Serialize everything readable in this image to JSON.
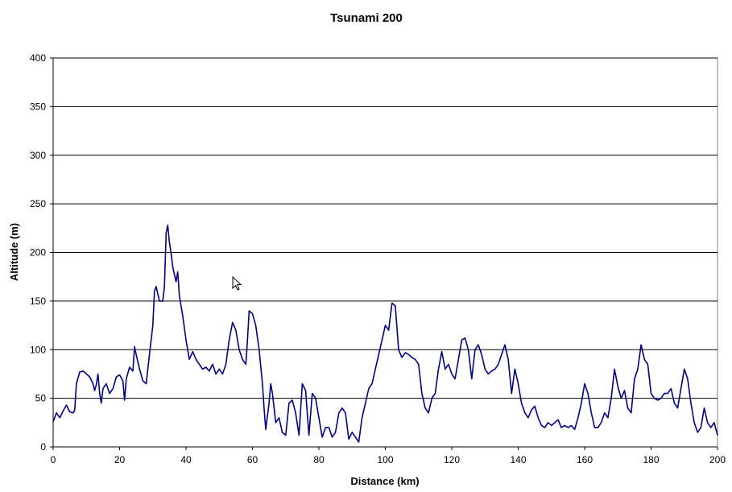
{
  "chart_data": {
    "type": "line",
    "title": "Tsunami 200",
    "xlabel": "Distance (km)",
    "ylabel": "Altitude (m)",
    "xlim": [
      0,
      200
    ],
    "ylim": [
      0,
      400
    ],
    "x_ticks": [
      "0",
      "20",
      "40",
      "60",
      "80",
      "100",
      "120",
      "140",
      "160",
      "180",
      "200"
    ],
    "y_ticks": [
      "0",
      "50",
      "100",
      "150",
      "200",
      "250",
      "300",
      "350",
      "400"
    ],
    "grid": "horizontal",
    "legend": "none",
    "colors": {
      "series": "#000080",
      "grid": "#000000",
      "frame": "#808080"
    },
    "series": [
      {
        "values": [
          [
            0,
            26
          ],
          [
            1,
            35
          ],
          [
            2,
            30
          ],
          [
            3,
            37
          ],
          [
            4,
            43
          ],
          [
            5,
            36
          ],
          [
            6,
            35
          ],
          [
            6.5,
            38
          ],
          [
            7,
            65
          ],
          [
            8,
            77
          ],
          [
            9,
            78
          ],
          [
            10,
            75
          ],
          [
            11,
            72
          ],
          [
            12,
            65
          ],
          [
            12.5,
            58
          ],
          [
            13,
            64
          ],
          [
            13.5,
            75
          ],
          [
            14,
            55
          ],
          [
            14.5,
            45
          ],
          [
            15,
            60
          ],
          [
            16,
            65
          ],
          [
            17,
            55
          ],
          [
            18,
            60
          ],
          [
            19,
            72
          ],
          [
            20,
            74
          ],
          [
            21,
            68
          ],
          [
            21.5,
            48
          ],
          [
            22,
            70
          ],
          [
            23,
            82
          ],
          [
            24,
            78
          ],
          [
            24.5,
            103
          ],
          [
            25,
            95
          ],
          [
            26,
            80
          ],
          [
            27,
            68
          ],
          [
            28,
            65
          ],
          [
            29,
            95
          ],
          [
            30,
            125
          ],
          [
            30.5,
            160
          ],
          [
            31,
            165
          ],
          [
            32,
            150
          ],
          [
            33,
            150
          ],
          [
            33.5,
            165
          ],
          [
            34,
            220
          ],
          [
            34.5,
            228
          ],
          [
            35,
            210
          ],
          [
            35.5,
            200
          ],
          [
            36,
            185
          ],
          [
            37,
            170
          ],
          [
            37.5,
            180
          ],
          [
            38,
            155
          ],
          [
            39,
            135
          ],
          [
            40,
            110
          ],
          [
            41,
            90
          ],
          [
            42,
            98
          ],
          [
            43,
            90
          ],
          [
            44,
            85
          ],
          [
            45,
            80
          ],
          [
            46,
            82
          ],
          [
            47,
            78
          ],
          [
            48,
            85
          ],
          [
            49,
            75
          ],
          [
            50,
            80
          ],
          [
            51,
            75
          ],
          [
            52,
            85
          ],
          [
            53,
            110
          ],
          [
            54,
            128
          ],
          [
            55,
            120
          ],
          [
            56,
            100
          ],
          [
            57,
            90
          ],
          [
            58,
            85
          ],
          [
            58.5,
            110
          ],
          [
            59,
            140
          ],
          [
            60,
            137
          ],
          [
            61,
            125
          ],
          [
            62,
            100
          ],
          [
            63,
            65
          ],
          [
            63.5,
            40
          ],
          [
            64,
            18
          ],
          [
            65,
            45
          ],
          [
            65.5,
            65
          ],
          [
            66,
            55
          ],
          [
            67,
            25
          ],
          [
            68,
            30
          ],
          [
            69,
            15
          ],
          [
            70,
            12
          ],
          [
            71,
            45
          ],
          [
            72,
            48
          ],
          [
            73,
            35
          ],
          [
            74,
            12
          ],
          [
            75,
            65
          ],
          [
            76,
            58
          ],
          [
            77,
            12
          ],
          [
            78,
            55
          ],
          [
            79,
            50
          ],
          [
            80,
            30
          ],
          [
            81,
            10
          ],
          [
            82,
            20
          ],
          [
            83,
            20
          ],
          [
            84,
            10
          ],
          [
            85,
            15
          ],
          [
            86,
            35
          ],
          [
            87,
            40
          ],
          [
            88,
            35
          ],
          [
            89,
            8
          ],
          [
            90,
            15
          ],
          [
            91,
            10
          ],
          [
            92,
            5
          ],
          [
            93,
            30
          ],
          [
            94,
            45
          ],
          [
            95,
            60
          ],
          [
            96,
            65
          ],
          [
            97,
            80
          ],
          [
            98,
            95
          ],
          [
            99,
            110
          ],
          [
            100,
            125
          ],
          [
            101,
            120
          ],
          [
            102,
            148
          ],
          [
            103,
            145
          ],
          [
            104,
            100
          ],
          [
            105,
            92
          ],
          [
            106,
            97
          ],
          [
            107,
            95
          ],
          [
            108,
            92
          ],
          [
            109,
            90
          ],
          [
            110,
            85
          ],
          [
            111,
            55
          ],
          [
            112,
            40
          ],
          [
            113,
            35
          ],
          [
            114,
            50
          ],
          [
            115,
            55
          ],
          [
            116,
            80
          ],
          [
            117,
            98
          ],
          [
            118,
            80
          ],
          [
            119,
            85
          ],
          [
            120,
            75
          ],
          [
            121,
            70
          ],
          [
            122,
            90
          ],
          [
            123,
            110
          ],
          [
            124,
            112
          ],
          [
            125,
            100
          ],
          [
            126,
            70
          ],
          [
            127,
            100
          ],
          [
            128,
            105
          ],
          [
            129,
            95
          ],
          [
            130,
            80
          ],
          [
            131,
            75
          ],
          [
            132,
            78
          ],
          [
            133,
            80
          ],
          [
            134,
            85
          ],
          [
            135,
            95
          ],
          [
            136,
            105
          ],
          [
            137,
            90
          ],
          [
            138,
            55
          ],
          [
            139,
            80
          ],
          [
            140,
            65
          ],
          [
            141,
            45
          ],
          [
            142,
            35
          ],
          [
            143,
            30
          ],
          [
            144,
            38
          ],
          [
            145,
            42
          ],
          [
            146,
            30
          ],
          [
            147,
            22
          ],
          [
            148,
            20
          ],
          [
            149,
            25
          ],
          [
            150,
            22
          ],
          [
            151,
            25
          ],
          [
            152,
            28
          ],
          [
            153,
            20
          ],
          [
            154,
            22
          ],
          [
            155,
            20
          ],
          [
            156,
            22
          ],
          [
            157,
            18
          ],
          [
            158,
            30
          ],
          [
            159,
            45
          ],
          [
            160,
            65
          ],
          [
            161,
            55
          ],
          [
            162,
            35
          ],
          [
            163,
            20
          ],
          [
            164,
            20
          ],
          [
            165,
            25
          ],
          [
            166,
            35
          ],
          [
            167,
            30
          ],
          [
            168,
            50
          ],
          [
            169,
            80
          ],
          [
            170,
            62
          ],
          [
            171,
            50
          ],
          [
            172,
            58
          ],
          [
            173,
            40
          ],
          [
            174,
            35
          ],
          [
            175,
            70
          ],
          [
            176,
            80
          ],
          [
            177,
            105
          ],
          [
            178,
            90
          ],
          [
            179,
            85
          ],
          [
            180,
            55
          ],
          [
            181,
            50
          ],
          [
            182,
            48
          ],
          [
            183,
            50
          ],
          [
            184,
            55
          ],
          [
            185,
            55
          ],
          [
            186,
            60
          ],
          [
            187,
            45
          ],
          [
            188,
            40
          ],
          [
            189,
            60
          ],
          [
            190,
            80
          ],
          [
            191,
            70
          ],
          [
            192,
            45
          ],
          [
            193,
            25
          ],
          [
            194,
            15
          ],
          [
            195,
            20
          ],
          [
            196,
            40
          ],
          [
            197,
            25
          ],
          [
            198,
            20
          ],
          [
            199,
            25
          ],
          [
            200,
            12
          ]
        ]
      }
    ]
  }
}
